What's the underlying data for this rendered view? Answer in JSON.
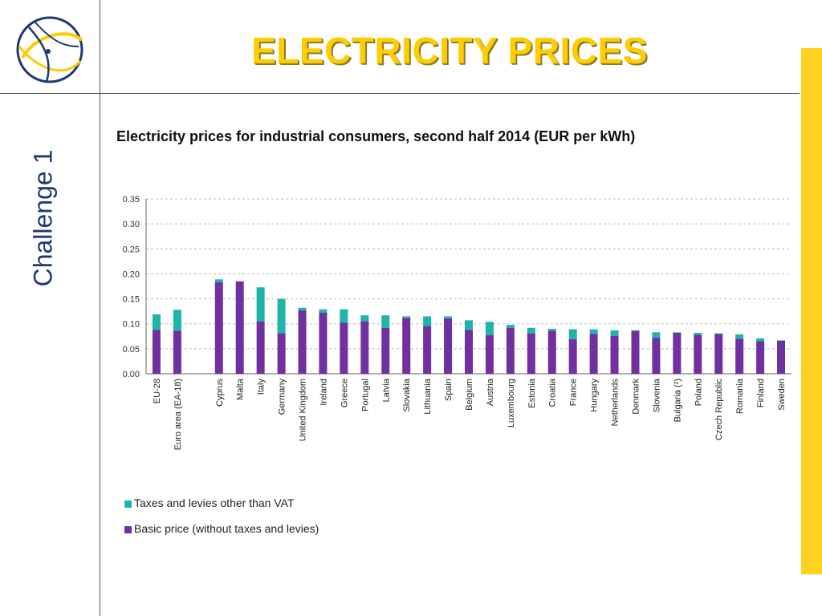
{
  "slide": {
    "title": "ELECTRICITY PRICES",
    "sidebar_label": "Challenge 1",
    "subtitle": "Electricity prices for industrial consumers, second half 2014 (EUR per kWh)"
  },
  "colors": {
    "basic": "#7030a0",
    "taxes": "#1eb5a8",
    "title": "#ffcc00",
    "accent_bar": "#ffd21f",
    "sidebar_text": "#1f3a6e"
  },
  "legend": [
    {
      "label": "Taxes and levies other than VAT",
      "color": "#1eb5a8"
    },
    {
      "label": "Basic price (without taxes and levies)",
      "color": "#7030a0"
    }
  ],
  "chart_data": {
    "type": "bar",
    "stacked": true,
    "title": "Electricity prices for industrial consumers, second half 2014 (EUR per kWh)",
    "xlabel": "",
    "ylabel": "",
    "ylim": [
      0,
      0.35
    ],
    "yticks": [
      "0.00",
      "0.05",
      "0.10",
      "0.15",
      "0.20",
      "0.25",
      "0.30",
      "0.35"
    ],
    "grid": true,
    "legend_position": "bottom-left",
    "categories": [
      "EU-28",
      "Euro area (EA-18)",
      "",
      "Cyprus",
      "Malta",
      "Italy",
      "Germany",
      "United Kingdom",
      "Ireland",
      "Greece",
      "Portugal",
      "Latvia",
      "Slovakia",
      "Lithuania",
      "Spain",
      "Belgium",
      "Austria",
      "Luxembourg",
      "Estonia",
      "Croatia",
      "France",
      "Hungary",
      "Netherlands",
      "Denmark",
      "Slovenia",
      "Bulgaria (²)",
      "Poland",
      "Czech Republic",
      "Romania",
      "Finland",
      "Sweden"
    ],
    "series": [
      {
        "name": "Basic price (without taxes and levies)",
        "values": [
          0.088,
          0.086,
          null,
          0.183,
          0.185,
          0.105,
          0.081,
          0.127,
          0.122,
          0.102,
          0.105,
          0.092,
          0.112,
          0.096,
          0.111,
          0.088,
          0.077,
          0.092,
          0.081,
          0.086,
          0.069,
          0.08,
          0.076,
          0.086,
          0.072,
          0.082,
          0.078,
          0.08,
          0.07,
          0.065,
          0.066
        ]
      },
      {
        "name": "Taxes and levies other than VAT",
        "values": [
          0.031,
          0.042,
          null,
          0.006,
          0.0,
          0.068,
          0.069,
          0.005,
          0.007,
          0.027,
          0.012,
          0.025,
          0.003,
          0.019,
          0.004,
          0.019,
          0.027,
          0.006,
          0.011,
          0.004,
          0.02,
          0.009,
          0.011,
          0.001,
          0.011,
          0.001,
          0.004,
          0.001,
          0.009,
          0.006,
          0.001
        ]
      }
    ]
  }
}
